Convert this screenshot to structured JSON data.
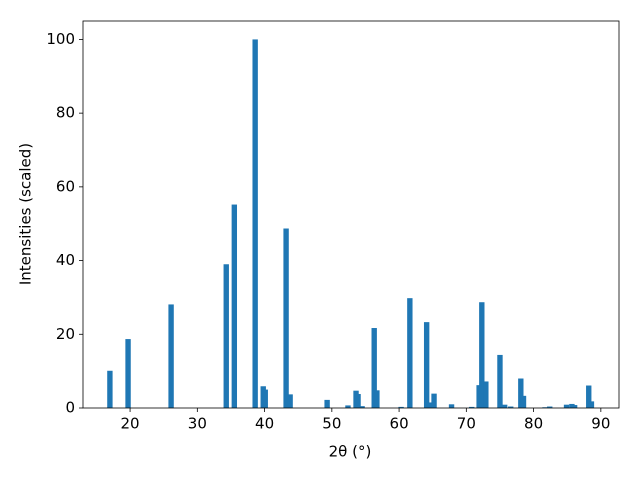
{
  "chart_data": {
    "type": "bar",
    "x_label": "2θ (°)",
    "y_label": "Intensities (scaled)",
    "x": [
      17.0,
      19.7,
      26.1,
      34.3,
      35.5,
      38.6,
      39.8,
      40.1,
      43.2,
      43.8,
      49.3,
      52.4,
      53.6,
      53.9,
      54.5,
      56.3,
      56.7,
      60.3,
      61.6,
      64.1,
      64.6,
      65.2,
      67.8,
      70.8,
      71.9,
      72.3,
      72.9,
      75.0,
      75.7,
      76.6,
      78.1,
      78.5,
      81.7,
      82.4,
      84.9,
      85.7,
      86.1,
      88.2,
      88.6
    ],
    "values": [
      10.1,
      18.7,
      28.1,
      39,
      55.2,
      100,
      5.9,
      5,
      48.7,
      3.7,
      2.2,
      0.7,
      4.7,
      3.8,
      0.5,
      21.7,
      4.8,
      0.3,
      29.8,
      23.3,
      1.5,
      3.9,
      1.0,
      0.3,
      6.2,
      28.7,
      7.2,
      14.4,
      0.9,
      0.4,
      8.0,
      3.3,
      0.2,
      0.4,
      0.9,
      1.1,
      0.8,
      6.1,
      1.8
    ],
    "color": "#1f77b4",
    "xlim": [
      13.0,
      92.7
    ],
    "ylim": [
      0,
      105
    ],
    "xticks": [
      20,
      30,
      40,
      50,
      60,
      70,
      80,
      90
    ],
    "yticks": [
      0,
      20,
      40,
      60,
      80,
      100
    ]
  }
}
